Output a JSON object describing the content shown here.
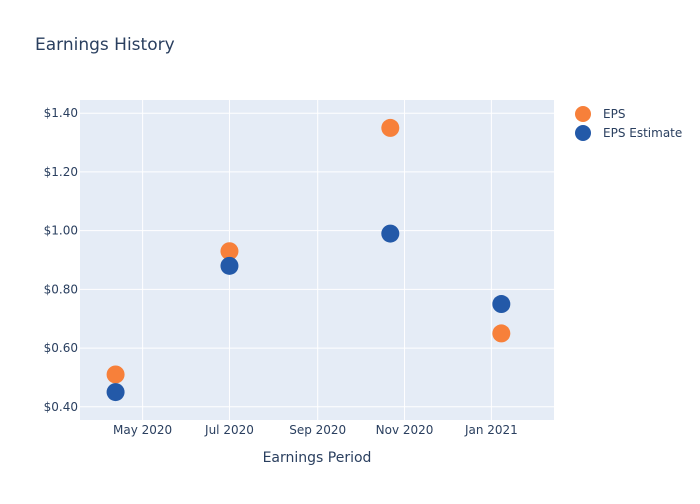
{
  "chart_data": {
    "type": "scatter",
    "title": "Earnings History",
    "xlabel": "Earnings Period",
    "ylabel": "",
    "x_ticks": [
      {
        "date": "2020-05-01",
        "label": "May 2020"
      },
      {
        "date": "2020-07-01",
        "label": "Jul 2020"
      },
      {
        "date": "2020-09-01",
        "label": "Sep 2020"
      },
      {
        "date": "2020-11-01",
        "label": "Nov 2020"
      },
      {
        "date": "2021-01-01",
        "label": "Jan 2021"
      }
    ],
    "y_ticks": [
      {
        "value": 0.4,
        "label": "$0.40"
      },
      {
        "value": 0.6,
        "label": "$0.60"
      },
      {
        "value": 0.8,
        "label": "$0.80"
      },
      {
        "value": 1.0,
        "label": "$1.00"
      },
      {
        "value": 1.2,
        "label": "$1.20"
      },
      {
        "value": 1.4,
        "label": "$1.40"
      }
    ],
    "xlim": [
      "2020-03-18",
      "2021-02-14"
    ],
    "ylim": [
      0.355,
      1.445
    ],
    "grid": true,
    "legend_position": "top-right",
    "series": [
      {
        "name": "EPS",
        "color": "#f7803a",
        "x": [
          "2020-04-12",
          "2020-07-01",
          "2020-10-22",
          "2021-01-08"
        ],
        "y": [
          0.51,
          0.93,
          1.35,
          0.65
        ]
      },
      {
        "name": "EPS Estimate",
        "color": "#2359a8",
        "x": [
          "2020-04-12",
          "2020-07-01",
          "2020-10-22",
          "2021-01-08"
        ],
        "y": [
          0.45,
          0.88,
          0.99,
          0.75
        ]
      }
    ]
  },
  "colors": {
    "plot_background": "#e5ecf6",
    "grid": "#ffffff",
    "text": "#2a3f5f"
  }
}
